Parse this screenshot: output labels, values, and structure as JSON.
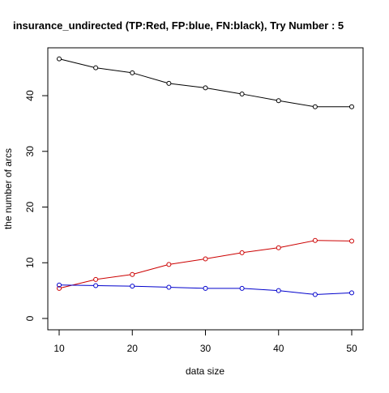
{
  "chart_data": {
    "type": "line",
    "title": "insurance_undirected  (TP:Red, FP:blue, FN:black),  Try Number :  5",
    "xlabel": "data size",
    "ylabel": "the number of arcs",
    "xlim": [
      10,
      50
    ],
    "ylim": [
      0,
      46.7
    ],
    "x_ticks": [
      10,
      20,
      30,
      40,
      50
    ],
    "y_ticks": [
      0,
      10,
      20,
      30,
      40
    ],
    "x": [
      10,
      15,
      20,
      25,
      30,
      35,
      40,
      45,
      50
    ],
    "grid": false,
    "legend": "none",
    "series": [
      {
        "color": "#000000",
        "marker": "open-circle",
        "values": [
          46.6,
          45.0,
          44.1,
          42.2,
          41.4,
          40.3,
          39.1,
          38.0,
          38.0
        ]
      },
      {
        "color": "#cc0000",
        "marker": "open-circle",
        "values": [
          5.4,
          7.0,
          7.9,
          9.7,
          10.7,
          11.8,
          12.7,
          14.0,
          13.9
        ]
      },
      {
        "color": "#0000cc",
        "marker": "open-circle",
        "values": [
          6.0,
          5.9,
          5.8,
          5.6,
          5.4,
          5.4,
          5.0,
          4.3,
          4.6
        ]
      }
    ]
  }
}
